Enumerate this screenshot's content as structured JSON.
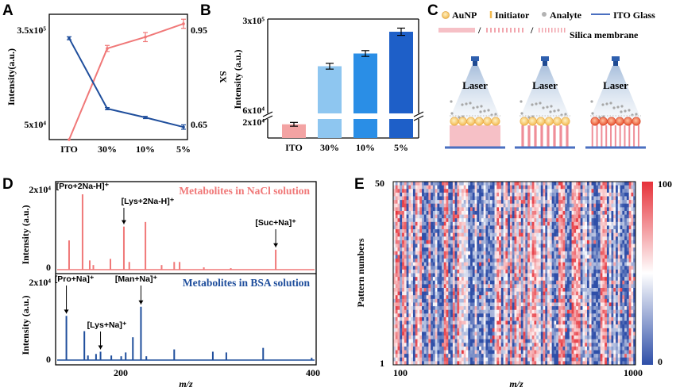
{
  "chart_data": [
    {
      "panel": "A",
      "type": "line",
      "categories": [
        "ITO",
        "30%",
        "10%",
        "5%"
      ],
      "series": [
        {
          "name": "Intensity(a.u.)",
          "axis": "left",
          "color": "#f07878",
          "values": [
            30000,
            270000,
            300000,
            335000
          ],
          "errors": [
            0,
            8000,
            12000,
            12000
          ]
        },
        {
          "name": "SX",
          "axis": "right",
          "color": "#1f4e9c",
          "values": [
            0.905,
            0.714,
            0.69,
            0.664
          ],
          "errors": [
            0.004,
            0.003,
            0.003,
            0.006
          ]
        }
      ],
      "ylabel": "Intensity(a.u.)",
      "ylabel_right": "SX",
      "ylim": [
        30000,
        360000
      ],
      "ylim_right": [
        0.63,
        0.97
      ],
      "yticks_left": [
        "3.5x10⁵",
        "5x10⁴"
      ],
      "yticks_right": [
        "0.95",
        "0.65"
      ]
    },
    {
      "panel": "B",
      "type": "bar",
      "categories": [
        "ITO",
        "30%",
        "10%",
        "5%"
      ],
      "values": [
        18000,
        170000,
        205000,
        265000
      ],
      "errors": [
        2500,
        8000,
        8000,
        10000
      ],
      "colors": [
        "#f3a3a3",
        "#8ec6f0",
        "#2a8ee6",
        "#1e5fc8"
      ],
      "ylabel": "Intensity (a.u.)",
      "yticks": [
        "3x10⁵",
        "6x10⁴",
        "2x10⁴"
      ],
      "axis_break": true
    },
    {
      "panel": "D",
      "type": "line",
      "subtype": "mass-spectrum",
      "xlabel": "m/z",
      "xticks": [
        "200",
        "400"
      ],
      "xlim": [
        110,
        400
      ],
      "spectra": [
        {
          "name": "Metabolites in NaCl solution",
          "color": "#f07878",
          "ylabel": "Intensity (a.u.)",
          "ymax_label": "2x10⁴",
          "zero_label": "0",
          "peaks": [
            [
              125,
              0.38
            ],
            [
              140,
              0.98
            ],
            [
              148,
              0.12
            ],
            [
              152,
              0.06
            ],
            [
              171,
              0.14
            ],
            [
              186,
              0.56
            ],
            [
              192,
              0.1
            ],
            [
              210,
              0.62
            ],
            [
              228,
              0.06
            ],
            [
              242,
              0.1
            ],
            [
              248,
              0.1
            ],
            [
              275,
              0.03
            ],
            [
              305,
              0.02
            ],
            [
              355,
              0.26
            ]
          ],
          "annotations": [
            {
              "text": "[Pro+2Na-H]⁺",
              "mz": 140
            },
            {
              "text": "[Lys+2Na-H]⁺",
              "mz": 186
            },
            {
              "text": "[Suc+Na]⁺",
              "mz": 355
            }
          ]
        },
        {
          "name": "Metabolites in BSA solution",
          "color": "#1f4e9c",
          "ylabel": "Intensity (a.u.)",
          "ymax_label": "2x10⁴",
          "zero_label": "0",
          "peaks": [
            [
              122,
              0.58
            ],
            [
              142,
              0.38
            ],
            [
              146,
              0.06
            ],
            [
              155,
              0.08
            ],
            [
              160,
              0.11
            ],
            [
              172,
              0.06
            ],
            [
              183,
              0.05
            ],
            [
              188,
              0.1
            ],
            [
              196,
              0.3
            ],
            [
              205,
              0.7
            ],
            [
              211,
              0.05
            ],
            [
              242,
              0.14
            ],
            [
              285,
              0.11
            ],
            [
              300,
              0.1
            ],
            [
              341,
              0.16
            ],
            [
              395,
              0.03
            ]
          ],
          "annotations": [
            {
              "text": "[Pro+Na]⁺",
              "mz": 122
            },
            {
              "text": "[Man+Na]⁺",
              "mz": 205
            },
            {
              "text": "[Lys+Na]⁺",
              "mz": 160
            }
          ]
        }
      ]
    },
    {
      "panel": "E",
      "type": "heatmap",
      "xlabel": "m/z",
      "ylabel": "Pattern numbers",
      "xticks": [
        "100",
        "1000"
      ],
      "yticks": [
        "50",
        "1"
      ],
      "colorbar": {
        "min": "0",
        "max": "100",
        "low_color": "#2f4fa8",
        "mid_color": "#ffffff",
        "high_color": "#e6323a"
      },
      "rows": 50,
      "columns": 110
    }
  ],
  "panels": {
    "a": "A",
    "b": "B",
    "c": "C",
    "d": "D",
    "e": "E"
  },
  "schematic": {
    "legend": {
      "aunp": "AuNP",
      "initiator": "Initiator",
      "analyte": "Analyte",
      "ito": "ITO  Glass",
      "silica": "Silica membrane"
    },
    "laser_labels": [
      "Laser",
      "Laser",
      "Laser"
    ],
    "colors": {
      "aunp": "#f7c66a",
      "aunp_hot": "#f0603a",
      "ito": "#4a6fc0",
      "silica": "#f2a6ae"
    }
  }
}
